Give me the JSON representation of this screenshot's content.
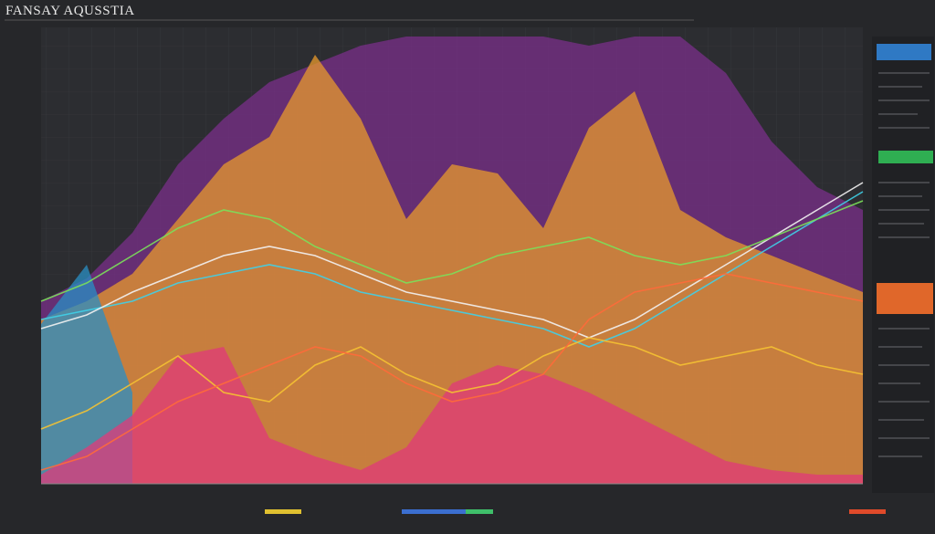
{
  "chart_data": {
    "type": "area",
    "title": "FANSAY AQUSSTIA",
    "categories": [
      null,
      null,
      null,
      null,
      null,
      null,
      null,
      null,
      null,
      null,
      null,
      null,
      null,
      null,
      null,
      null,
      null,
      null,
      null
    ],
    "ylim": [
      0,
      100
    ],
    "series": [
      {
        "style": "area",
        "color": "#7a2f8a",
        "values": [
          40,
          45,
          55,
          70,
          80,
          88,
          92,
          96,
          98,
          98,
          98,
          98,
          96,
          98,
          98,
          90,
          75,
          65,
          60
        ]
      },
      {
        "style": "area",
        "color": "#e89a2c",
        "values": [
          36,
          40,
          46,
          58,
          70,
          76,
          94,
          80,
          58,
          70,
          68,
          56,
          78,
          86,
          60,
          54,
          50,
          46,
          42
        ]
      },
      {
        "style": "area",
        "color": "#2a8fc4",
        "values": [
          35,
          48,
          20,
          null,
          null,
          null,
          null,
          null,
          null,
          null,
          null,
          null,
          null,
          null,
          null,
          null,
          null,
          null,
          null
        ]
      },
      {
        "style": "area",
        "color": "#e03a7a",
        "values": [
          2,
          8,
          15,
          28,
          30,
          10,
          6,
          3,
          8,
          22,
          26,
          24,
          20,
          15,
          10,
          5,
          3,
          2,
          2
        ]
      },
      {
        "style": "line",
        "color": "#3fd0e8",
        "values": [
          36,
          38,
          40,
          44,
          46,
          48,
          46,
          42,
          40,
          38,
          36,
          34,
          30,
          34,
          40,
          46,
          52,
          58,
          64
        ]
      },
      {
        "style": "line",
        "color": "#f2f2f2",
        "values": [
          34,
          37,
          42,
          46,
          50,
          52,
          50,
          46,
          42,
          40,
          38,
          36,
          32,
          36,
          42,
          48,
          54,
          60,
          66
        ]
      },
      {
        "style": "line",
        "color": "#f5c232",
        "values": [
          12,
          16,
          22,
          28,
          20,
          18,
          26,
          30,
          24,
          20,
          22,
          28,
          32,
          30,
          26,
          28,
          30,
          26,
          24
        ]
      },
      {
        "style": "line",
        "color": "#ff6a3a",
        "values": [
          3,
          6,
          12,
          18,
          22,
          26,
          30,
          28,
          22,
          18,
          20,
          24,
          36,
          42,
          44,
          46,
          44,
          42,
          40
        ]
      },
      {
        "style": "line",
        "color": "#7be05a",
        "values": [
          40,
          44,
          50,
          56,
          60,
          58,
          52,
          48,
          44,
          46,
          50,
          52,
          54,
          50,
          48,
          50,
          54,
          58,
          62
        ]
      }
    ]
  }
}
